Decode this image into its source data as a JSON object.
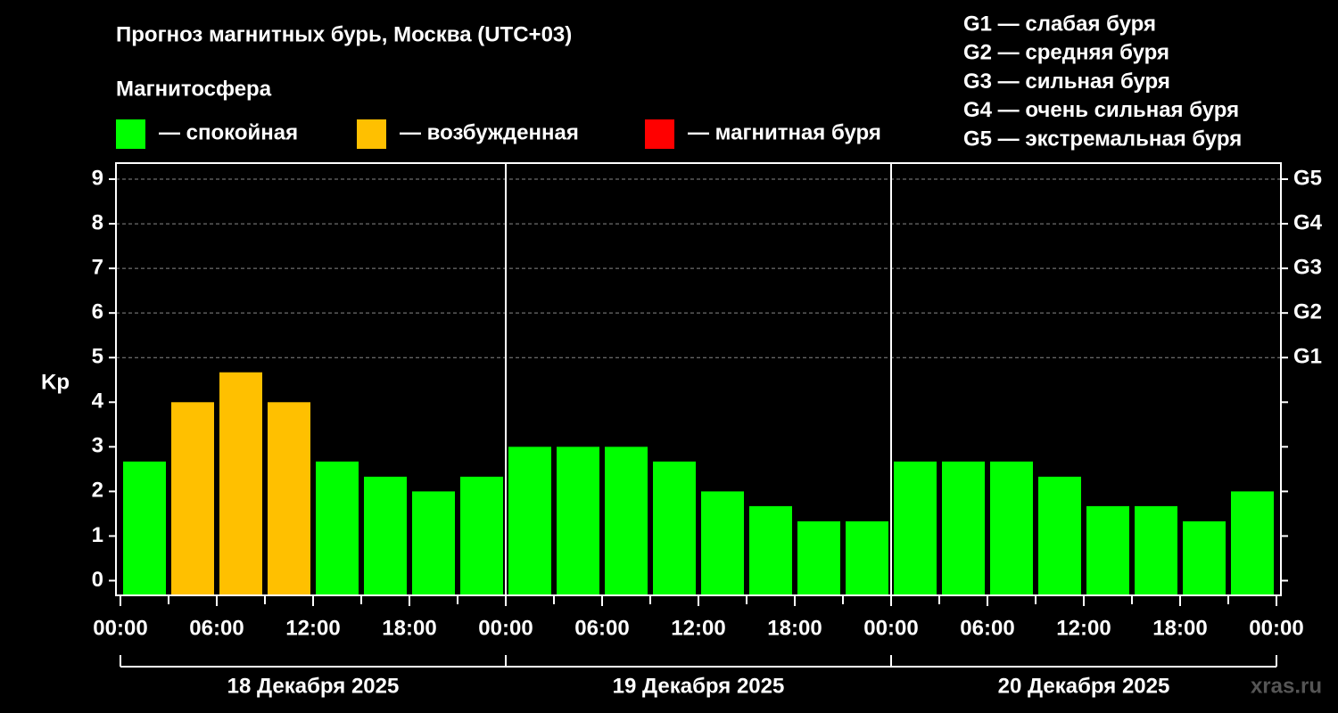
{
  "chart_data": {
    "type": "bar",
    "title": "Прогноз магнитных бурь, Москва (UTC+03)",
    "legend_title": "Магнитосфера",
    "legend": [
      {
        "name": "— спокойная",
        "color": "#00ff00"
      },
      {
        "name": "— возбужденная",
        "color": "#ffc000"
      },
      {
        "name": "— магнитная буря",
        "color": "#ff0000"
      }
    ],
    "storm_scale": [
      "G1 — слабая буря",
      "G2 — средняя буря",
      "G3 — сильная буря",
      "G4 — очень сильная буря",
      "G5 — экстремальная буря"
    ],
    "y_label": "Kp",
    "x": [
      1.5,
      4.5,
      7.5,
      10.5,
      13.5,
      16.5,
      19.5,
      22.5,
      25.5,
      28.5,
      31.5,
      34.5,
      37.5,
      40.5,
      43.5,
      46.5,
      49.5,
      52.5,
      55.5,
      58.5,
      61.5,
      64.5,
      67.5,
      70.5
    ],
    "values": [
      2.67,
      4,
      4.67,
      4,
      2.67,
      2.33,
      2,
      2.33,
      3,
      3,
      3,
      2.67,
      2,
      1.67,
      1.33,
      1.33,
      2.67,
      2.67,
      2.67,
      2.33,
      1.67,
      1.67,
      1.33,
      2
    ],
    "colors": [
      "#00ff00",
      "#ffc000",
      "#ffc000",
      "#ffc000",
      "#00ff00",
      "#00ff00",
      "#00ff00",
      "#00ff00",
      "#00ff00",
      "#00ff00",
      "#00ff00",
      "#00ff00",
      "#00ff00",
      "#00ff00",
      "#00ff00",
      "#00ff00",
      "#00ff00",
      "#00ff00",
      "#00ff00",
      "#00ff00",
      "#00ff00",
      "#00ff00",
      "#00ff00",
      "#00ff00"
    ],
    "xlim": [
      0,
      72
    ],
    "xticks": [
      {
        "value": 0,
        "label": "00:00"
      },
      {
        "value": 6,
        "label": "06:00"
      },
      {
        "value": 12,
        "label": "12:00"
      },
      {
        "value": 18,
        "label": "18:00"
      },
      {
        "value": 24,
        "label": "00:00"
      },
      {
        "value": 30,
        "label": "06:00"
      },
      {
        "value": 36,
        "label": "12:00"
      },
      {
        "value": 42,
        "label": "18:00"
      },
      {
        "value": 48,
        "label": "00:00"
      },
      {
        "value": 54,
        "label": "06:00"
      },
      {
        "value": 60,
        "label": "12:00"
      },
      {
        "value": 66,
        "label": "18:00"
      },
      {
        "value": 72,
        "label": "00:00"
      }
    ],
    "ylim": [
      -0.33,
      9.36
    ],
    "yticks": [
      0,
      1,
      2,
      3,
      4,
      5,
      6,
      7,
      8,
      9
    ],
    "y2ticks": [
      {
        "value": 5,
        "label": "G1"
      },
      {
        "value": 6,
        "label": "G2"
      },
      {
        "value": 7,
        "label": "G3"
      },
      {
        "value": 8,
        "label": "G4"
      },
      {
        "value": 9,
        "label": "G5"
      }
    ],
    "days": [
      "18 Декабря 2025",
      "19 Декабря 2025",
      "20 Декабря 2025"
    ],
    "watermark": "xras.ru",
    "grid": true
  }
}
